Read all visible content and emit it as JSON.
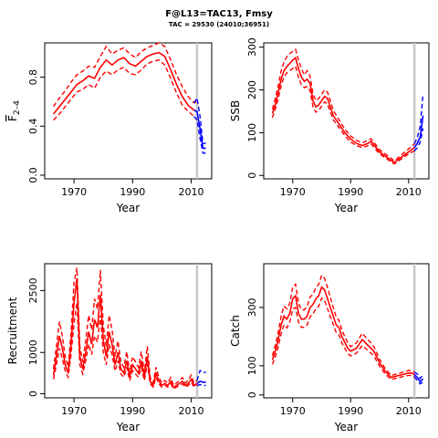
{
  "figure": {
    "title": "F@L13=TAC13, Fmsy",
    "subtitle": "TAC = 29530 (24010;36951)"
  },
  "chart_data": [
    {
      "type": "line",
      "ylabel": "F̅ 2-4",
      "ylabel_main": "F",
      "ylabel_sub": "2–4",
      "xlabel": "Year",
      "xlim": [
        1960,
        2017
      ],
      "ylim": [
        -0.03,
        1.08
      ],
      "xticks": [
        1970,
        1990,
        2010
      ],
      "yticks": [
        0.0,
        0.4,
        0.8
      ],
      "ytick_labels": [
        "0.0",
        "0.4",
        "0.8"
      ],
      "ref_year": 2012,
      "series": [
        {
          "role": "hist",
          "color": "#ff0000",
          "x": [
            1963,
            1965,
            1967,
            1969,
            1971,
            1973,
            1975,
            1977,
            1979,
            1981,
            1983,
            1985,
            1987,
            1989,
            1991,
            1993,
            1995,
            1997,
            1999,
            2001,
            2003,
            2005,
            2007,
            2009,
            2011,
            2012
          ],
          "mid": [
            0.5,
            0.56,
            0.62,
            0.68,
            0.74,
            0.77,
            0.81,
            0.79,
            0.88,
            0.94,
            0.9,
            0.94,
            0.96,
            0.91,
            0.89,
            0.93,
            0.97,
            0.99,
            1.0,
            0.97,
            0.86,
            0.74,
            0.64,
            0.57,
            0.53,
            0.52
          ],
          "lo": [
            0.45,
            0.5,
            0.56,
            0.62,
            0.68,
            0.7,
            0.74,
            0.71,
            0.8,
            0.85,
            0.82,
            0.86,
            0.88,
            0.83,
            0.82,
            0.86,
            0.91,
            0.93,
            0.94,
            0.9,
            0.79,
            0.67,
            0.57,
            0.52,
            0.48,
            0.45
          ],
          "hi": [
            0.56,
            0.63,
            0.69,
            0.76,
            0.82,
            0.85,
            0.89,
            0.88,
            0.97,
            1.05,
            0.99,
            1.02,
            1.04,
            0.99,
            0.96,
            1.01,
            1.04,
            1.06,
            1.08,
            1.05,
            0.94,
            0.82,
            0.72,
            0.64,
            0.59,
            0.6
          ]
        },
        {
          "role": "proj",
          "color": "#0000ff",
          "x": [
            2011,
            2012,
            2013,
            2014,
            2015
          ],
          "mid": [
            0.53,
            0.52,
            0.38,
            0.22,
            0.22
          ],
          "lo": [
            0.48,
            0.45,
            0.3,
            0.18,
            0.18
          ],
          "hi": [
            0.59,
            0.63,
            0.48,
            0.26,
            0.26
          ]
        }
      ]
    },
    {
      "type": "line",
      "ylabel": "SSB",
      "xlabel": "Year",
      "xlim": [
        1960,
        2017
      ],
      "ylim": [
        -8,
        310
      ],
      "xticks": [
        1970,
        1990,
        2010
      ],
      "yticks": [
        0,
        100,
        200,
        300
      ],
      "ytick_labels": [
        "0",
        "100",
        "200",
        "300"
      ],
      "ref_year": 2012,
      "series": [
        {
          "role": "hist",
          "color": "#ff0000",
          "x": [
            1963,
            1964,
            1965,
            1966,
            1967,
            1968,
            1969,
            1970,
            1971,
            1972,
            1973,
            1974,
            1975,
            1976,
            1977,
            1978,
            1979,
            1980,
            1981,
            1982,
            1983,
            1984,
            1986,
            1988,
            1990,
            1992,
            1994,
            1996,
            1997,
            1998,
            2000,
            2002,
            2004,
            2005,
            2006,
            2008,
            2010,
            2011,
            2012
          ],
          "mid": [
            145,
            165,
            195,
            225,
            245,
            255,
            262,
            270,
            275,
            250,
            230,
            220,
            225,
            215,
            175,
            160,
            165,
            175,
            185,
            180,
            160,
            140,
            120,
            100,
            85,
            75,
            70,
            75,
            80,
            72,
            55,
            45,
            35,
            30,
            35,
            45,
            55,
            60,
            65
          ],
          "lo": [
            135,
            155,
            180,
            210,
            230,
            240,
            245,
            250,
            255,
            230,
            212,
            205,
            208,
            198,
            160,
            148,
            152,
            162,
            172,
            168,
            148,
            130,
            112,
            93,
            78,
            70,
            65,
            70,
            74,
            66,
            50,
            41,
            31,
            27,
            31,
            41,
            50,
            54,
            57
          ],
          "hi": [
            155,
            180,
            210,
            245,
            265,
            278,
            285,
            290,
            295,
            270,
            250,
            235,
            245,
            232,
            190,
            175,
            180,
            190,
            200,
            195,
            175,
            152,
            130,
            108,
            92,
            82,
            76,
            82,
            86,
            78,
            60,
            50,
            40,
            34,
            39,
            51,
            62,
            68,
            74
          ]
        },
        {
          "role": "proj",
          "color": "#0000ff",
          "x": [
            2012,
            2013,
            2014,
            2015
          ],
          "mid": [
            65,
            75,
            90,
            140
          ],
          "lo": [
            57,
            65,
            78,
            110
          ],
          "hi": [
            74,
            88,
            115,
            190
          ]
        }
      ]
    },
    {
      "type": "line",
      "ylabel": "Recruitment",
      "xlabel": "Year",
      "xlim": [
        1960,
        2017
      ],
      "ylim": [
        -100,
        3150
      ],
      "xticks": [
        1970,
        1990,
        2010
      ],
      "yticks": [
        0,
        1000,
        2500
      ],
      "ytick_labels": [
        "0",
        "1000",
        "2500"
      ],
      "ref_year": 2012,
      "series": [
        {
          "role": "hist",
          "color": "#ff0000",
          "x": [
            1963,
            1964,
            1965,
            1966,
            1967,
            1968,
            1969,
            1970,
            1971,
            1972,
            1973,
            1974,
            1975,
            1976,
            1977,
            1978,
            1979,
            1980,
            1981,
            1982,
            1983,
            1984,
            1985,
            1986,
            1987,
            1988,
            1989,
            1990,
            1991,
            1992,
            1993,
            1994,
            1995,
            1996,
            1997,
            1998,
            1999,
            2000,
            2001,
            2002,
            2003,
            2004,
            2005,
            2006,
            2007,
            2008,
            2009,
            2010,
            2011,
            2012
          ],
          "mid": [
            450,
            900,
            1400,
            1100,
            700,
            500,
            1200,
            2200,
            2800,
            900,
            600,
            1000,
            1500,
            1200,
            1800,
            1600,
            2400,
            1300,
            900,
            1500,
            1200,
            700,
            1000,
            600,
            500,
            800,
            400,
            700,
            600,
            500,
            800,
            400,
            900,
            300,
            200,
            500,
            300,
            200,
            250,
            200,
            300,
            150,
            200,
            250,
            300,
            200,
            250,
            350,
            200,
            250
          ],
          "lo": [
            350,
            700,
            1100,
            850,
            550,
            400,
            950,
            1700,
            2200,
            700,
            480,
            800,
            1200,
            950,
            1400,
            1250,
            1900,
            1000,
            700,
            1200,
            950,
            550,
            800,
            480,
            400,
            640,
            320,
            560,
            480,
            400,
            640,
            320,
            720,
            240,
            160,
            400,
            240,
            160,
            200,
            160,
            240,
            120,
            160,
            200,
            240,
            160,
            200,
            280,
            160,
            200
          ],
          "hi": [
            600,
            1150,
            1750,
            1400,
            900,
            650,
            1500,
            2700,
            3050,
            1150,
            770,
            1280,
            1900,
            1550,
            2300,
            2050,
            3000,
            1650,
            1150,
            1900,
            1550,
            900,
            1280,
            770,
            640,
            1020,
            520,
            900,
            770,
            640,
            1020,
            520,
            1150,
            390,
            260,
            640,
            390,
            260,
            320,
            260,
            390,
            200,
            260,
            320,
            390,
            260,
            320,
            450,
            260,
            320
          ]
        },
        {
          "role": "proj",
          "color": "#0000ff",
          "x": [
            2012,
            2013,
            2014,
            2015
          ],
          "mid": [
            250,
            300,
            280,
            280
          ],
          "lo": [
            200,
            220,
            200,
            200
          ],
          "hi": [
            320,
            560,
            520,
            520
          ]
        }
      ]
    },
    {
      "type": "line",
      "ylabel": "Catch",
      "xlabel": "Year",
      "xlim": [
        1960,
        2017
      ],
      "ylim": [
        -10,
        450
      ],
      "xticks": [
        1970,
        1990,
        2010
      ],
      "yticks": [
        0,
        100,
        300
      ],
      "ytick_labels": [
        "0",
        "100",
        "300"
      ],
      "ref_year": 2012,
      "series": [
        {
          "role": "hist",
          "color": "#ff0000",
          "x": [
            1963,
            1964,
            1965,
            1966,
            1967,
            1968,
            1969,
            1970,
            1971,
            1972,
            1973,
            1974,
            1975,
            1976,
            1977,
            1978,
            1979,
            1980,
            1981,
            1982,
            1983,
            1984,
            1985,
            1986,
            1987,
            1988,
            1989,
            1990,
            1992,
            1994,
            1995,
            1996,
            1998,
            2000,
            2002,
            2004,
            2006,
            2008,
            2010,
            2011,
            2012
          ],
          "mid": [
            120,
            150,
            190,
            240,
            270,
            260,
            280,
            330,
            340,
            280,
            260,
            260,
            270,
            300,
            310,
            330,
            340,
            370,
            360,
            330,
            300,
            270,
            240,
            230,
            200,
            180,
            160,
            150,
            160,
            190,
            180,
            170,
            150,
            110,
            80,
            60,
            65,
            70,
            75,
            75,
            70
          ],
          "lo": [
            105,
            130,
            165,
            210,
            240,
            230,
            250,
            295,
            300,
            250,
            232,
            232,
            240,
            268,
            278,
            296,
            304,
            332,
            324,
            296,
            268,
            242,
            214,
            205,
            178,
            160,
            142,
            134,
            143,
            170,
            161,
            152,
            134,
            98,
            71,
            53,
            58,
            63,
            67,
            67,
            62
          ],
          "hi": [
            135,
            170,
            215,
            270,
            305,
            295,
            315,
            370,
            380,
            315,
            292,
            292,
            304,
            336,
            345,
            368,
            380,
            410,
            400,
            368,
            335,
            300,
            268,
            255,
            222,
            200,
            178,
            166,
            178,
            212,
            200,
            190,
            166,
            122,
            89,
            67,
            72,
            78,
            84,
            84,
            78
          ]
        },
        {
          "role": "proj",
          "color": "#0000ff",
          "x": [
            2012,
            2013,
            2014,
            2015
          ],
          "mid": [
            70,
            60,
            45,
            55
          ],
          "lo": [
            62,
            50,
            38,
            44
          ],
          "hi": [
            78,
            72,
            56,
            70
          ]
        }
      ]
    }
  ]
}
